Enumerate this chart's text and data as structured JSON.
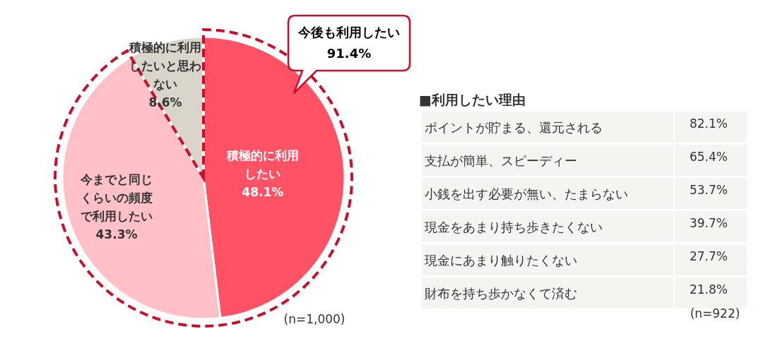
{
  "chart_data": [
    {
      "type": "pie",
      "categories": [
        "積極的に利用したい",
        "今までと同じくらいの頻度で利用したい",
        "積極的に利用したいと思わない"
      ],
      "values": [
        48.1,
        43.3,
        8.6
      ],
      "colors": [
        "#ff5264",
        "#ffc0c7",
        "#dad5cb"
      ],
      "value_labels": [
        "48.1%",
        "43.3%",
        "8.6%"
      ],
      "annotations": [
        "今後も利用したい",
        "91.4%",
        "(n=1,000)"
      ]
    },
    {
      "type": "other",
      "title": "■利用したい理由",
      "categories": [
        "ポイントが貯まる、還元される",
        "支払が簡単、スピーディー",
        "小銭を出す必要が無い、たまらない",
        "現金をあまり持ち歩きたくない",
        "現金にあまり触りたくない",
        "財布を持ち歩かなくて済む"
      ],
      "values": [
        82.1,
        65.4,
        53.7,
        39.7,
        27.7,
        21.8
      ],
      "value_labels": [
        "82.1%",
        "65.4%",
        "53.7%",
        "39.7%",
        "27.7%",
        "21.8%"
      ],
      "annotations": [
        "(n=922)"
      ]
    }
  ]
}
